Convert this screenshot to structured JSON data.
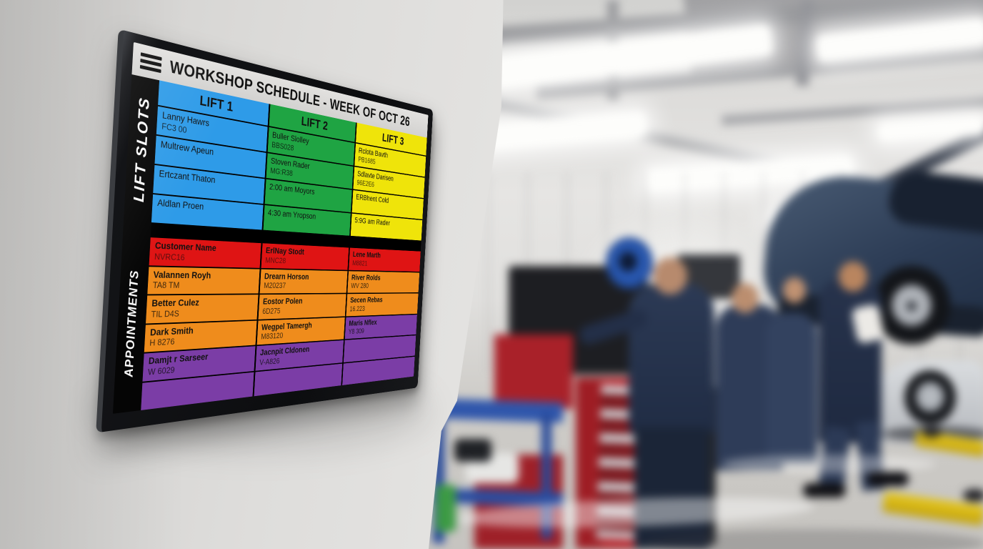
{
  "display": {
    "titlebar": {
      "menu_icon": "hamburger-icon",
      "title": "WORKSHOP SCHEDULE - WEEK OF OCT 26"
    },
    "lift_slots": {
      "label": "LIFT SLOTS",
      "columns": [
        {
          "header": "LIFT 1",
          "color_name": "blue",
          "rows": [
            {
              "name": "Lanny Hawrs",
              "code": "FC3 00"
            },
            {
              "name": "Multrew Apeun",
              "code": ""
            },
            {
              "name": "Ertczant Thaton",
              "code": ""
            },
            {
              "name": "Aldlan Proen",
              "code": ""
            }
          ]
        },
        {
          "header": "LIFT 2",
          "color_name": "green",
          "rows": [
            {
              "name": "Buller Slolley",
              "code": "BBS028"
            },
            {
              "name": "Stoven Rader",
              "code": "MG:R38"
            },
            {
              "name": "2:00 am Moyors",
              "code": ""
            },
            {
              "name": "4:30 am Yropson",
              "code": ""
            }
          ]
        },
        {
          "header": "LIFT 3",
          "color_name": "yellow",
          "rows": [
            {
              "name": "Rclota Bavth",
              "code": "PB1685"
            },
            {
              "name": "Sdlavte Darisen",
              "code": "96E2E6"
            },
            {
              "name": "ERBhent Cold",
              "code": ""
            },
            {
              "name": "5:9G am Rader",
              "code": ""
            }
          ]
        }
      ]
    },
    "appointments": {
      "label": "APPOINTMENTS",
      "rows": [
        {
          "cells": [
            {
              "name": "Customer Name",
              "code": "NVRC16",
              "color_name": "red"
            },
            {
              "name": "ErlNay Stodt",
              "code": "MNC28",
              "color_name": "red"
            },
            {
              "name": "Lene Marth",
              "code": "M8821",
              "color_name": "red"
            }
          ]
        },
        {
          "cells": [
            {
              "name": "Valannen Royh",
              "code": "TA8 TM",
              "color_name": "orange"
            },
            {
              "name": "Drearn Horson",
              "code": "M20237",
              "color_name": "orange"
            },
            {
              "name": "River Rolds",
              "code": "WV 280",
              "color_name": "orange"
            }
          ]
        },
        {
          "cells": [
            {
              "name": "Better Culez",
              "code": "TIL D4S",
              "color_name": "orange"
            },
            {
              "name": "Eostor Polen",
              "code": "6D275",
              "color_name": "orange"
            },
            {
              "name": "Secen Rebas",
              "code": "16.223",
              "color_name": "orange"
            }
          ]
        },
        {
          "cells": [
            {
              "name": "Dark Smith",
              "code": "H 8276",
              "color_name": "orange"
            },
            {
              "name": "Wegpel Tamergh",
              "code": "M83120",
              "color_name": "orange"
            },
            {
              "name": "Maris Nflex",
              "code": "Y8 309",
              "color_name": "purple"
            }
          ]
        },
        {
          "cells": [
            {
              "name": "Damjt r Sarseer",
              "code": "W 6029",
              "color_name": "purple"
            },
            {
              "name": "Jacnpit Cldonen",
              "code": "V-A826",
              "color_name": "purple"
            },
            {
              "name": "",
              "code": "",
              "color_name": "purple"
            }
          ]
        },
        {
          "cells": [
            {
              "name": "",
              "code": "",
              "color_name": "purple"
            },
            {
              "name": "",
              "code": "",
              "color_name": "purple"
            },
            {
              "name": "",
              "code": "",
              "color_name": "purple"
            }
          ]
        }
      ]
    },
    "colors": {
      "blue": "#2E9BE8",
      "green": "#1FA443",
      "yellow": "#EFE40A",
      "red": "#DF1414",
      "orange": "#EF8C1C",
      "purple": "#7B3DA6",
      "titlebar_gray": "#D9D8D6",
      "sidebar_black": "#050505"
    }
  }
}
